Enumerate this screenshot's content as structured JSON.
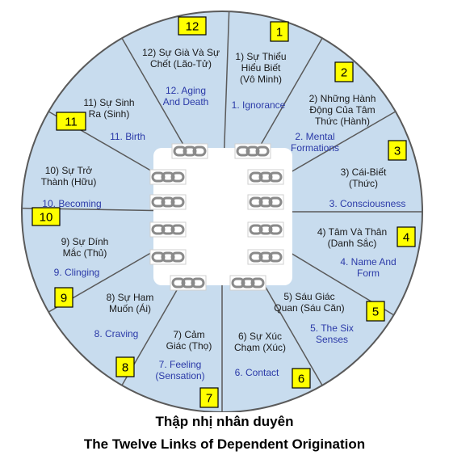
{
  "title_vi": "Thập nhị nhân duyên",
  "title_en": "The Twelve Links of Dependent Origination",
  "colors": {
    "wheel_fill": "#c8dcee",
    "stroke": "#5a5a5a",
    "badge": "#ffff00",
    "chain": "#8a8a8a",
    "english_text": "#2b3aa8"
  },
  "links": [
    {
      "num": "1",
      "vi": [
        "1) Sự Thiểu",
        "Hiểu Biết",
        "(Vô Minh)"
      ],
      "en": [
        "1. Ignorance"
      ]
    },
    {
      "num": "2",
      "vi": [
        "2) Những Hành",
        "Động Của Tâm",
        "Thức (Hành)"
      ],
      "en": [
        "2. Mental",
        "Formations"
      ]
    },
    {
      "num": "3",
      "vi": [
        "3) Cái-Biết",
        "(Thức)"
      ],
      "en": [
        "3. Consciousness"
      ]
    },
    {
      "num": "4",
      "vi": [
        "4) Tâm Và Thân",
        "(Danh Sắc)"
      ],
      "en": [
        "4. Name And",
        "Form"
      ]
    },
    {
      "num": "5",
      "vi": [
        "5) Sáu Giác",
        "Quan (Sáu Căn)"
      ],
      "en": [
        "5. The Six",
        "Senses"
      ]
    },
    {
      "num": "6",
      "vi": [
        "6) Sự Xúc",
        "Chạm (Xúc)"
      ],
      "en": [
        "6. Contact"
      ]
    },
    {
      "num": "7",
      "vi": [
        "7) Cảm",
        "Giác (Thọ)"
      ],
      "en": [
        "7. Feeling",
        "(Sensation)"
      ]
    },
    {
      "num": "8",
      "vi": [
        "8) Sự Ham",
        "Muốn (Ái)"
      ],
      "en": [
        "8. Craving"
      ]
    },
    {
      "num": "9",
      "vi": [
        "9) Sự Dính",
        "Mắc (Thủ)"
      ],
      "en": [
        "9. Clinging"
      ]
    },
    {
      "num": "10",
      "vi": [
        "10) Sự Trở",
        "Thành (Hữu)"
      ],
      "en": [
        "10. Becoming"
      ]
    },
    {
      "num": "11",
      "vi": [
        "11) Sự Sinh",
        "Ra (Sinh)"
      ],
      "en": [
        "11. Birth"
      ]
    },
    {
      "num": "12",
      "vi": [
        "12) Sự Già Và Sự",
        "Chết (Lão-Tử)"
      ],
      "en": [
        "12. Aging",
        "And Death"
      ]
    }
  ]
}
